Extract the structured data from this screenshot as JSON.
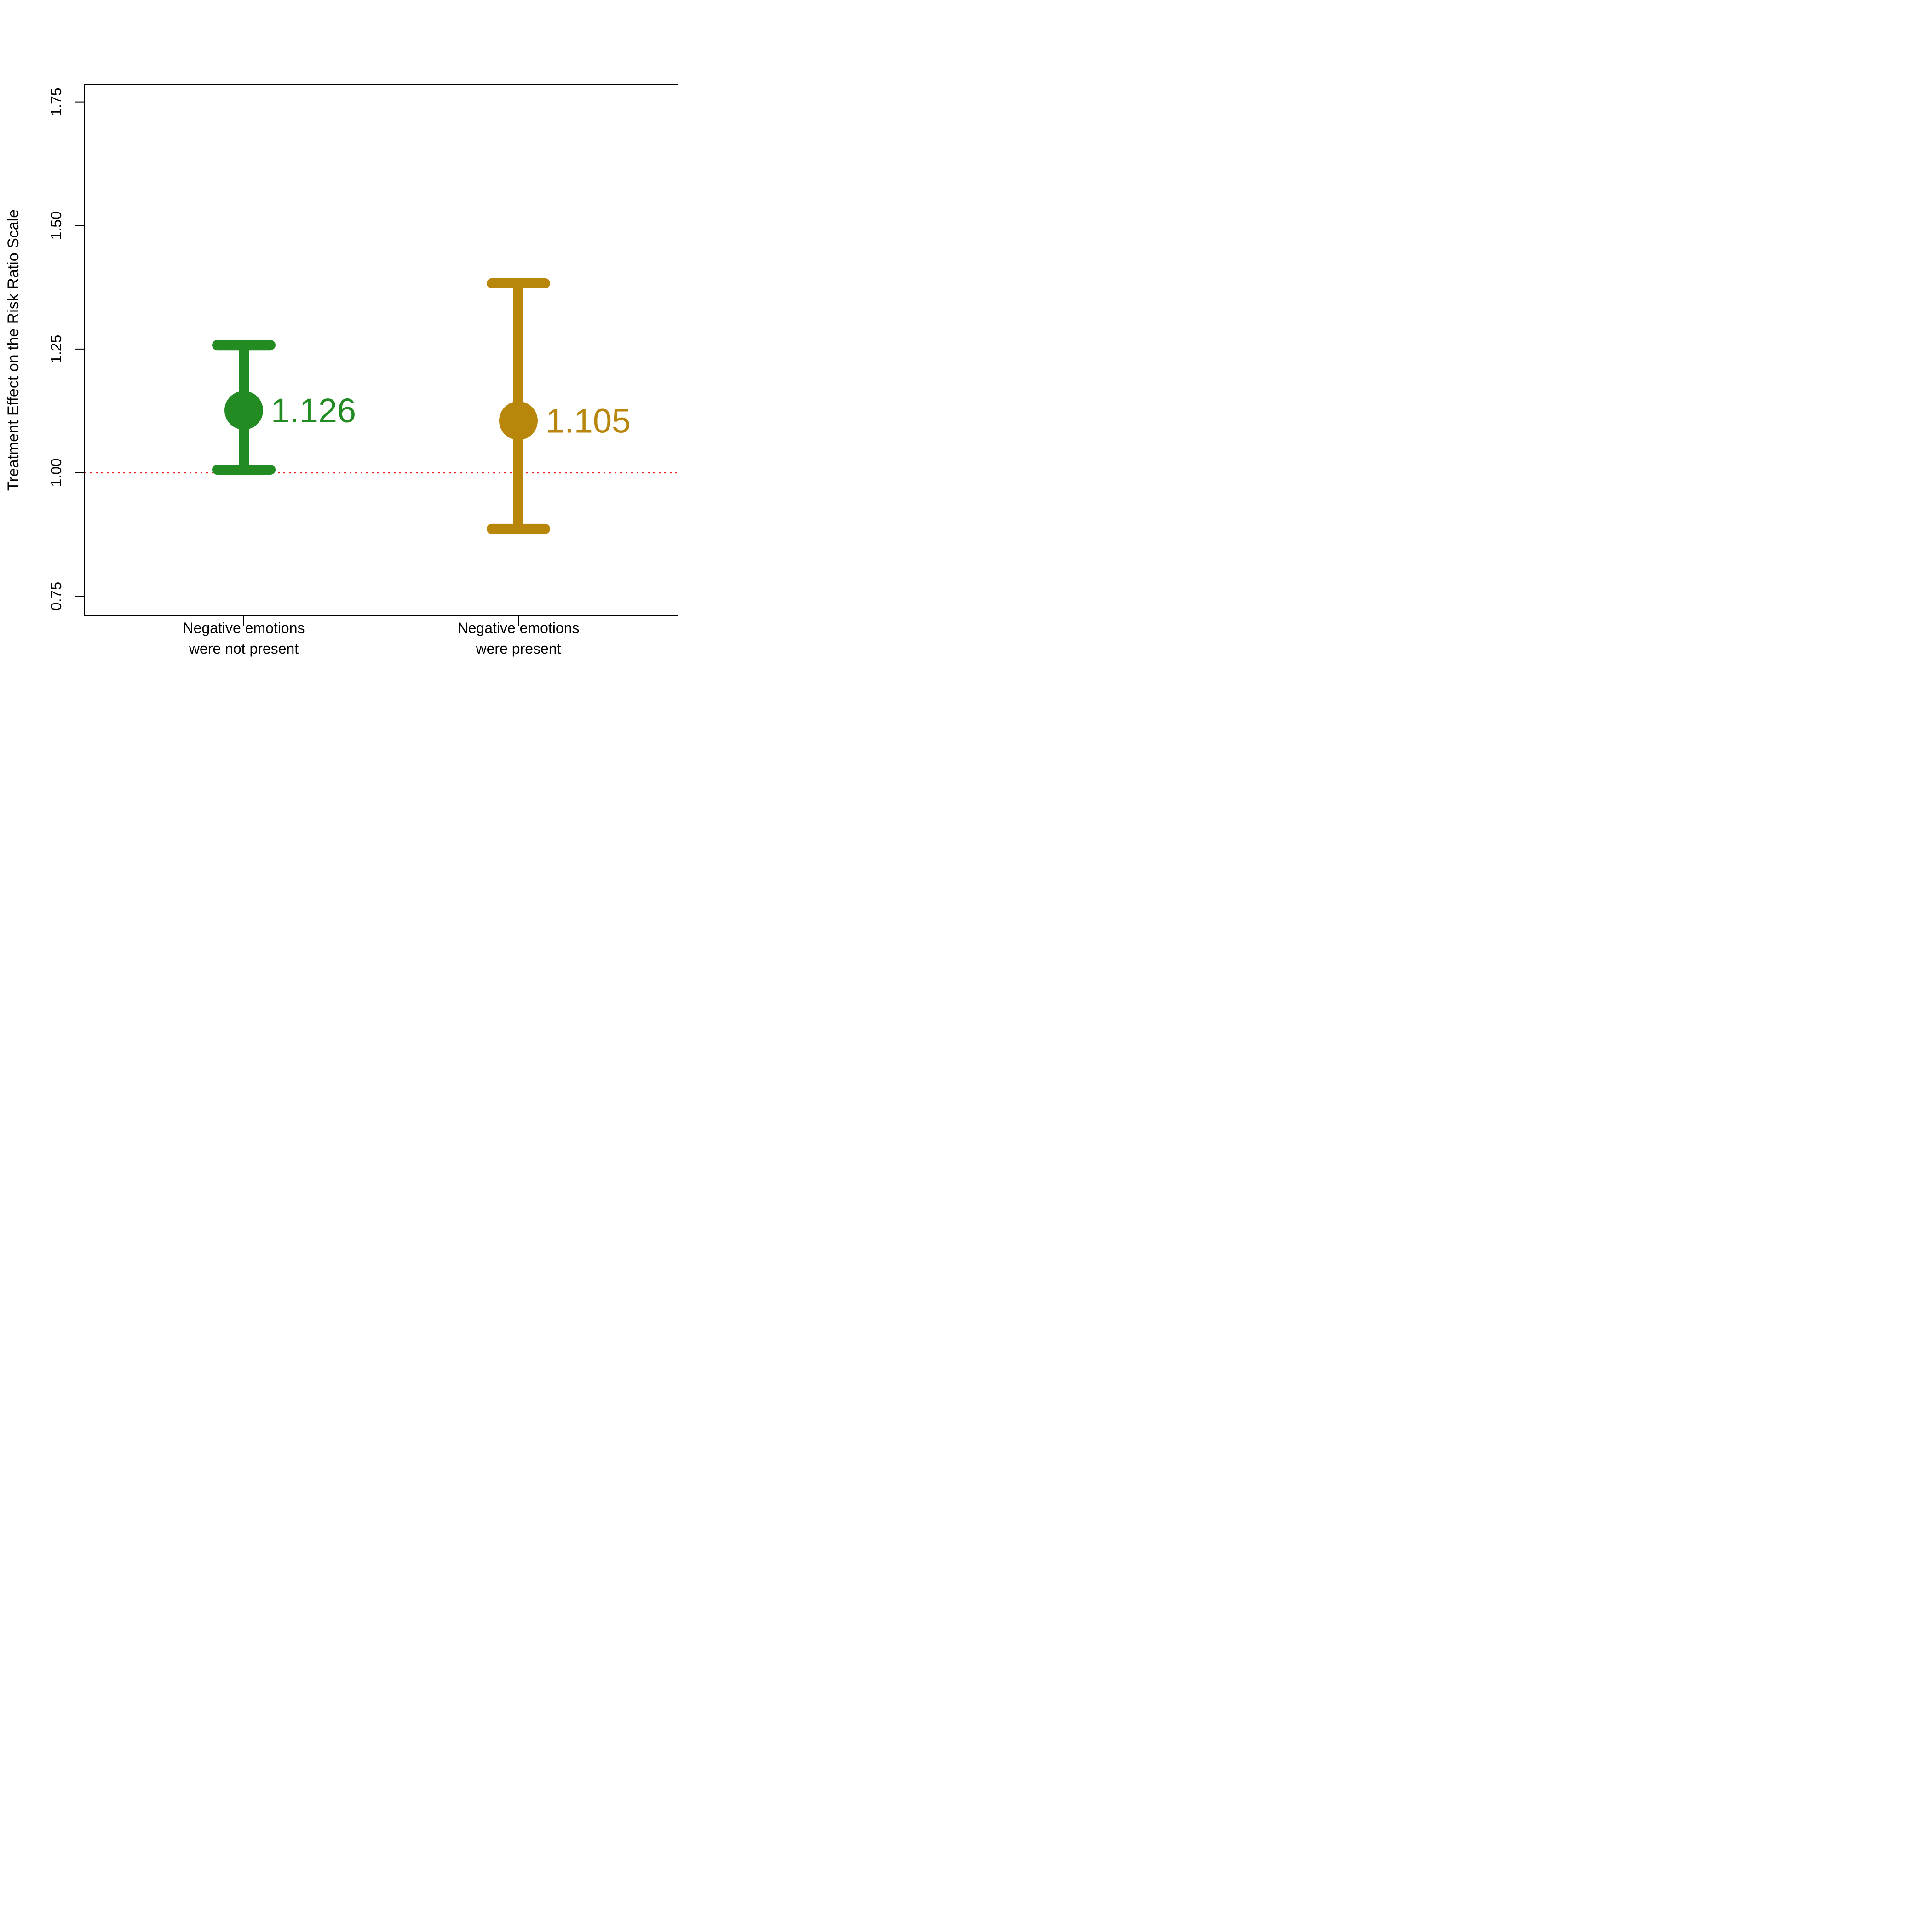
{
  "chart_data": {
    "type": "errorbar",
    "title": "",
    "xlabel": "",
    "ylabel": "Treatment Effect on the Risk Ratio Scale",
    "ylim": [
      0.71,
      1.785
    ],
    "yticks": [
      0.75,
      1.0,
      1.25,
      1.5,
      1.75
    ],
    "ytick_labels": [
      "0.75",
      "1.00",
      "1.25",
      "1.50",
      "1.75"
    ],
    "reference_line": {
      "value": 1.0,
      "color": "#ee1c1c",
      "style": "dotted"
    },
    "categories": [
      {
        "lines": [
          "Negative emotions",
          "were not present"
        ]
      },
      {
        "lines": [
          "Negative emotions",
          "were present"
        ]
      }
    ],
    "series": [
      {
        "name": "Negative emotions were not present",
        "estimate": 1.126,
        "label": "1.126",
        "lower": 1.006,
        "upper": 1.258,
        "color": "#228b22"
      },
      {
        "name": "Negative emotions were present",
        "estimate": 1.105,
        "label": "1.105",
        "lower": 0.886,
        "upper": 1.383,
        "color": "#b8860b"
      }
    ]
  }
}
